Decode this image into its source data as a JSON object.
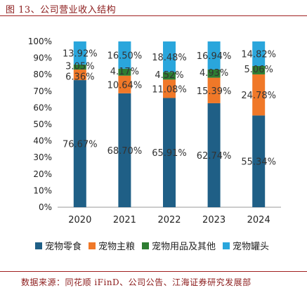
{
  "header": {
    "title": "图 13、公司营业收入结构"
  },
  "footer": {
    "source": "数据来源：同花顺 iFinD、公司公告、江海证券研究发展部"
  },
  "chart_data": {
    "type": "bar",
    "stacked": true,
    "percent": true,
    "categories": [
      "2020",
      "2021",
      "2022",
      "2023",
      "2024"
    ],
    "ylim": [
      0,
      100
    ],
    "yticks": [
      "0%",
      "10%",
      "20%",
      "30%",
      "40%",
      "50%",
      "60%",
      "70%",
      "80%",
      "90%",
      "100%"
    ],
    "grid": false,
    "legend_position": "bottom",
    "series": [
      {
        "name": "宠物零食",
        "color": "#1f5f86",
        "values": [
          76.67,
          68.7,
          65.91,
          62.74,
          55.34
        ],
        "labels": [
          "76.67%",
          "68.70%",
          "65.91%",
          "62.74%",
          "55.34%"
        ]
      },
      {
        "name": "宠物主粮",
        "color": "#f07828",
        "values": [
          6.36,
          10.64,
          11.08,
          15.39,
          24.78
        ],
        "labels": [
          "6.36%",
          "10.64%",
          "11.08%",
          "15.39%",
          "24.78%"
        ]
      },
      {
        "name": "宠物用品及其他",
        "color": "#2e7d32",
        "values": [
          3.05,
          4.17,
          4.52,
          4.93,
          5.06
        ],
        "labels": [
          "3.05%",
          "4.17%",
          "4.52%",
          "4.93%",
          "5.06%"
        ]
      },
      {
        "name": "宠物罐头",
        "color": "#2aa6dc",
        "values": [
          13.92,
          16.5,
          18.48,
          16.94,
          14.82
        ],
        "labels": [
          "13.92%",
          "16.50%",
          "18.48%",
          "16.94%",
          "14.82%"
        ]
      }
    ]
  }
}
